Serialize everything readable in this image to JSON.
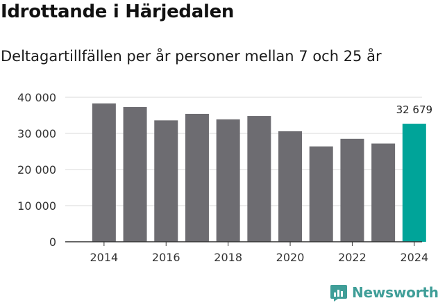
{
  "title": "Idrottande i Härjedalen",
  "subtitle": "Deltagartillfällen per år personer mellan 7 och 25 år",
  "brand": {
    "name": "Newsworthy",
    "icon": "newsworthy-logo-icon",
    "color": "#3f9e98"
  },
  "chart_data": {
    "type": "bar",
    "title": "Idrottande i Härjedalen",
    "subtitle": "Deltagartillfällen per år personer mellan 7 och 25 år",
    "xlabel": "",
    "ylabel": "",
    "categories": [
      "2014",
      "2015",
      "2016",
      "2017",
      "2018",
      "2019",
      "2020",
      "2021",
      "2022",
      "2023",
      "2024"
    ],
    "values": [
      38300,
      37300,
      33600,
      35400,
      33900,
      34800,
      30600,
      26400,
      28500,
      27200,
      32679
    ],
    "x_tick_labels": [
      "2014",
      "2016",
      "2018",
      "2020",
      "2022",
      "2024"
    ],
    "y_ticks": [
      0,
      10000,
      20000,
      30000,
      40000
    ],
    "y_tick_labels": [
      "0",
      "10 000",
      "20 000",
      "30 000",
      "40 000"
    ],
    "ylim": [
      0,
      40000
    ],
    "grid": true,
    "legend": "none",
    "highlight": {
      "category": "2024",
      "label": "32 679"
    },
    "colors": {
      "bar": "#6d6c71",
      "highlight": "#00a499",
      "grid": "#d9d9d9",
      "axis": "#333333"
    }
  }
}
